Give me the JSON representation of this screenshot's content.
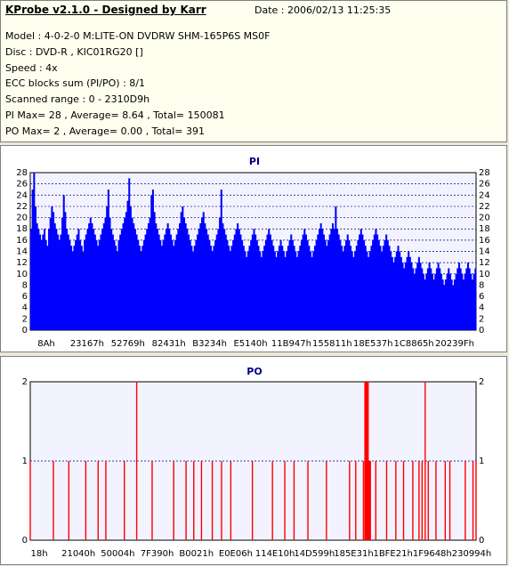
{
  "header": {
    "title": "KProbe v2.1.0 - Designed by Karr",
    "date": "Date : 2006/02/13 11:25:35",
    "lines": [
      "Model : 4-0-2-0 M:LITE-ON DVDRW SHM-165P6S MS0F",
      "Disc : DVD-R , KIC01RG20    []",
      "Speed : 4x",
      "ECC blocks sum (PI/PO) : 8/1",
      "Scanned range : 0 - 2310D9h",
      "PI Max= 28 , Average= 8.64 , Total= 150081",
      "PO Max= 2 , Average= 0.00 , Total= 391"
    ]
  },
  "colors": {
    "header_bg": "#fffff0",
    "pi_plot_bg": "#f3f3ff",
    "po_plot_bg": "#f3f3ff",
    "pi_series": "#0000ff",
    "po_series": "#ff0000",
    "grid": "#000080",
    "chart_title": "#000080"
  },
  "chart_data": [
    {
      "type": "bar",
      "title": "PI",
      "xlabel": "",
      "ylabel": "",
      "ylim": [
        0,
        28
      ],
      "yticks": [
        0,
        2,
        4,
        6,
        8,
        10,
        12,
        14,
        16,
        18,
        20,
        22,
        24,
        26,
        28
      ],
      "xtick_labels": [
        "8Ah",
        "23167h",
        "52769h",
        "82431h",
        "B3234h",
        "E5140h",
        "11B947h",
        "155811h",
        "18E537h",
        "1C8865h",
        "20239Fh"
      ],
      "grid": true,
      "series": [
        {
          "name": "",
          "values": [
            18,
            25,
            28,
            22,
            19,
            18,
            17,
            16,
            17,
            18,
            16,
            15,
            18,
            20,
            22,
            21,
            19,
            18,
            17,
            16,
            17,
            20,
            24,
            21,
            18,
            17,
            16,
            15,
            14,
            15,
            16,
            17,
            18,
            16,
            15,
            14,
            16,
            17,
            18,
            19,
            20,
            19,
            18,
            17,
            16,
            15,
            16,
            17,
            18,
            19,
            20,
            22,
            25,
            20,
            18,
            17,
            16,
            15,
            14,
            16,
            17,
            18,
            19,
            20,
            21,
            23,
            27,
            22,
            20,
            19,
            18,
            17,
            16,
            15,
            14,
            15,
            16,
            17,
            18,
            19,
            20,
            24,
            25,
            21,
            19,
            18,
            17,
            16,
            15,
            16,
            17,
            18,
            19,
            18,
            17,
            16,
            15,
            16,
            17,
            18,
            19,
            21,
            22,
            20,
            19,
            18,
            17,
            16,
            15,
            14,
            15,
            16,
            17,
            18,
            19,
            20,
            21,
            19,
            18,
            17,
            16,
            15,
            14,
            15,
            16,
            17,
            18,
            20,
            25,
            19,
            18,
            17,
            16,
            15,
            14,
            15,
            16,
            17,
            18,
            19,
            18,
            17,
            16,
            15,
            14,
            13,
            14,
            15,
            16,
            17,
            18,
            17,
            16,
            15,
            14,
            13,
            14,
            15,
            16,
            17,
            18,
            17,
            16,
            15,
            14,
            13,
            14,
            15,
            16,
            15,
            14,
            13,
            14,
            15,
            16,
            17,
            16,
            15,
            14,
            13,
            14,
            15,
            16,
            17,
            18,
            17,
            16,
            15,
            14,
            13,
            14,
            15,
            16,
            17,
            18,
            19,
            18,
            17,
            16,
            15,
            16,
            17,
            18,
            19,
            18,
            22,
            18,
            17,
            16,
            15,
            14,
            15,
            16,
            17,
            16,
            15,
            14,
            13,
            14,
            15,
            16,
            17,
            18,
            17,
            16,
            15,
            14,
            13,
            14,
            15,
            16,
            17,
            18,
            17,
            16,
            15,
            14,
            15,
            16,
            17,
            16,
            15,
            14,
            13,
            12,
            13,
            14,
            15,
            14,
            13,
            12,
            11,
            12,
            13,
            14,
            13,
            12,
            11,
            10,
            11,
            12,
            13,
            12,
            11,
            10,
            9,
            10,
            11,
            12,
            11,
            10,
            9,
            10,
            11,
            12,
            11,
            10,
            9,
            8,
            9,
            10,
            11,
            10,
            9,
            8,
            9,
            10,
            11,
            12,
            11,
            10,
            9,
            10,
            11,
            12,
            11,
            10,
            9,
            10,
            11
          ]
        }
      ]
    },
    {
      "type": "bar",
      "title": "PO",
      "xlabel": "",
      "ylabel": "",
      "ylim": [
        0,
        2
      ],
      "yticks": [
        0,
        1,
        2
      ],
      "xtick_labels": [
        "18h",
        "21040h",
        "50004h",
        "7F390h",
        "B0021h",
        "E0E06h",
        "114E10h",
        "14D599h",
        "185E31h",
        "1BFE21h",
        "1F9648h",
        "230994h"
      ],
      "grid": true,
      "series": [
        {
          "name": "",
          "x": [
            0,
            15,
            25,
            36,
            44,
            49,
            61,
            69,
            79,
            93,
            101,
            106,
            111,
            118,
            124,
            130,
            144,
            157,
            165,
            171,
            180,
            192,
            207,
            211,
            216,
            218,
            220,
            224,
            231,
            237,
            242,
            248,
            252,
            254,
            256,
            258,
            263,
            269,
            272,
            282,
            287,
            289
          ],
          "values": [
            1,
            1,
            1,
            1,
            1,
            1,
            1,
            2,
            1,
            1,
            1,
            1,
            1,
            1,
            1,
            1,
            1,
            1,
            1,
            1,
            1,
            1,
            1,
            1,
            1,
            2,
            1,
            1,
            1,
            1,
            1,
            1,
            1,
            1,
            2,
            1,
            1,
            1,
            1,
            1,
            1,
            1
          ],
          "xlim": [
            0,
            289
          ]
        }
      ]
    }
  ]
}
